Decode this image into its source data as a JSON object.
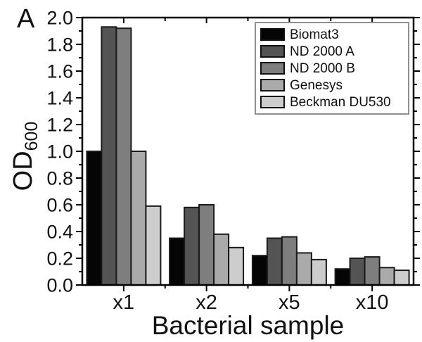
{
  "figure": {
    "panel_label": "A",
    "background_color": "#ffffff"
  },
  "chart_data": {
    "type": "bar",
    "title": "",
    "xlabel": "Bacterial sample",
    "ylabel": "OD",
    "ylabel_subscript": "600",
    "categories": [
      "x1",
      "x2",
      "x5",
      "x10"
    ],
    "series": [
      {
        "name": "Biomat3",
        "color": "#050505",
        "values": [
          1.0,
          0.35,
          0.22,
          0.12
        ]
      },
      {
        "name": "ND 2000 A",
        "color": "#545454",
        "values": [
          1.93,
          0.58,
          0.35,
          0.2
        ]
      },
      {
        "name": "ND 2000 B",
        "color": "#7e7e7e",
        "values": [
          1.92,
          0.6,
          0.36,
          0.21
        ]
      },
      {
        "name": "Genesys",
        "color": "#aaaaaa",
        "values": [
          1.0,
          0.38,
          0.24,
          0.13
        ]
      },
      {
        "name": "Beckman DU530",
        "color": "#cdcdcd",
        "values": [
          0.59,
          0.28,
          0.19,
          0.11
        ]
      }
    ],
    "ylim": [
      0.0,
      2.0
    ],
    "y_major_step": 0.2,
    "y_minor_step": 0.1,
    "y_tick_labels": [
      "0.0",
      "0.2",
      "0.4",
      "0.6",
      "0.8",
      "1.0",
      "1.2",
      "1.4",
      "1.6",
      "1.8",
      "2.0"
    ],
    "grid": false,
    "legend_position": "top-right",
    "bar_edge_color": "#1a1a1a",
    "axis_color": "#000000",
    "text_color": "#111111"
  }
}
